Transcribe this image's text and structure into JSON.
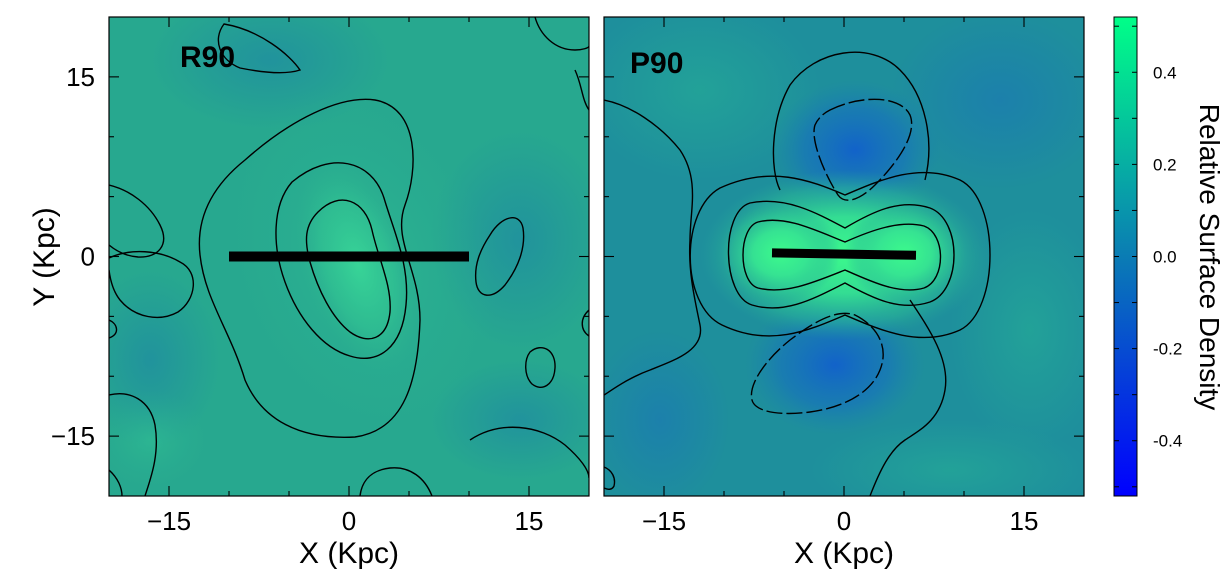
{
  "chart_data": [
    {
      "type": "heatmap",
      "panel_label": "R90",
      "xlabel": "X (Kpc)",
      "ylabel": "Y (Kpc)",
      "xlim": [
        -20,
        20
      ],
      "ylim": [
        -20,
        20
      ],
      "xticks": [
        -15,
        0,
        15
      ],
      "yticks": [
        -15,
        0,
        15
      ],
      "xtick_labels": [
        "−15",
        "0",
        "15"
      ],
      "ytick_labels": [
        "−15",
        "0",
        "15"
      ],
      "bar": {
        "x_start": -10,
        "x_end": 10,
        "y_start": 0,
        "y_end": 0
      },
      "contour_note": "elongated positive overdensity tilted from upper-left to lower-right around the bar",
      "background_color": "#27a88f",
      "peak_color": "#38d496"
    },
    {
      "type": "heatmap",
      "panel_label": "P90",
      "xlabel": "X (Kpc)",
      "ylabel": "",
      "xlim": [
        -20,
        20
      ],
      "ylim": [
        -20,
        20
      ],
      "xticks": [
        -15,
        0,
        15
      ],
      "yticks": [
        -15,
        0,
        15
      ],
      "xtick_labels": [
        "−15",
        "0",
        "15"
      ],
      "bar": {
        "x_start": -6,
        "x_end": 6,
        "y_start": 0.3,
        "y_end": 0.1
      },
      "contour_note": "dumbbell-shaped positive overdensity along bar with negative lobes (dashed contours) above and below",
      "background_color": "#1e8f9c",
      "peak_color": "#3bf08f",
      "negative_color": "#1565c8"
    }
  ],
  "colorbar": {
    "label": "Relative Surface Density",
    "vmin": -0.52,
    "vmax": 0.52,
    "ticks": [
      0.4,
      0.2,
      0.0,
      -0.2,
      -0.4
    ],
    "tick_labels": [
      "0.4",
      "0.2",
      "0.0",
      "-0.2",
      "-0.4"
    ],
    "color_top": "#00ff88",
    "color_bottom": "#0000ff"
  }
}
